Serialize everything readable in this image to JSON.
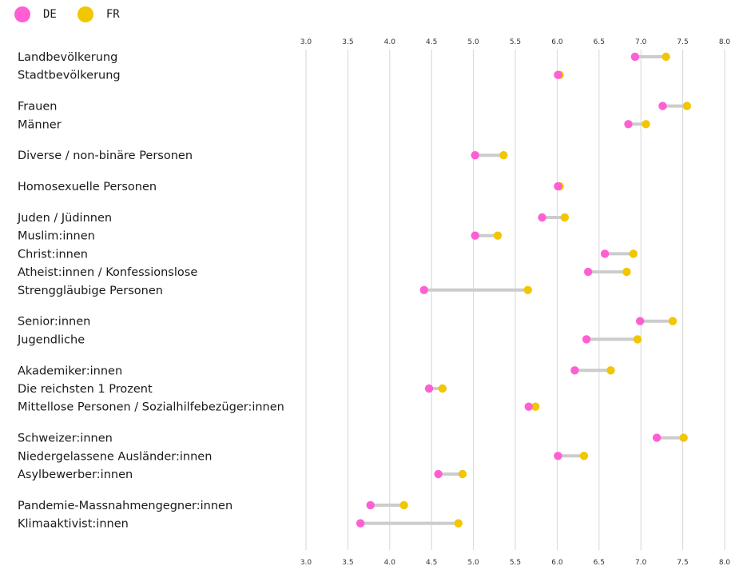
{
  "legend": [
    {
      "name": "DE",
      "color": "#ff5fd2"
    },
    {
      "name": "FR",
      "color": "#f2c600"
    }
  ],
  "chart_data": {
    "type": "dumbbell",
    "title": "",
    "xlabel": "",
    "ylabel": "",
    "xlim": [
      3.0,
      8.0
    ],
    "x_ticks": [
      "3.0",
      "3.5",
      "4.0",
      "4.5",
      "5.0",
      "5.5",
      "6.0",
      "6.5",
      "7.0",
      "7.5",
      "8.0"
    ],
    "tick_axes": "top-and-bottom",
    "grid": "vertical",
    "connector_color": "#cccccc",
    "series": [
      {
        "name": "DE",
        "color": "#ff5fd2"
      },
      {
        "name": "FR",
        "color": "#f2c600"
      }
    ],
    "categories": [
      {
        "label": "Landbevölkerung",
        "DE": 6.93,
        "FR": 7.3,
        "group": 0
      },
      {
        "label": "Stadtbevölkerung",
        "DE": 6.01,
        "FR": 6.03,
        "group": 0
      },
      {
        "label": "Frauen",
        "DE": 7.26,
        "FR": 7.55,
        "group": 1
      },
      {
        "label": "Männer",
        "DE": 6.85,
        "FR": 7.06,
        "group": 1
      },
      {
        "label": "Diverse / non-binäre Personen",
        "DE": 5.02,
        "FR": 5.36,
        "group": 2
      },
      {
        "label": "Homosexuelle Personen",
        "DE": 6.01,
        "FR": 6.03,
        "group": 3
      },
      {
        "label": "Juden / Jüdinnen",
        "DE": 5.82,
        "FR": 6.09,
        "group": 4
      },
      {
        "label": "Muslim:innen",
        "DE": 5.02,
        "FR": 5.29,
        "group": 4
      },
      {
        "label": "Christ:innen",
        "DE": 6.57,
        "FR": 6.91,
        "group": 4
      },
      {
        "label": "Atheist:innen / Konfessionslose",
        "DE": 6.37,
        "FR": 6.83,
        "group": 4
      },
      {
        "label": "Strenggläubige Personen",
        "DE": 4.41,
        "FR": 5.65,
        "group": 4
      },
      {
        "label": "Senior:innen",
        "DE": 6.99,
        "FR": 7.38,
        "group": 5
      },
      {
        "label": "Jugendliche",
        "DE": 6.35,
        "FR": 6.96,
        "group": 5
      },
      {
        "label": "Akademiker:innen",
        "DE": 6.21,
        "FR": 6.64,
        "group": 6
      },
      {
        "label": "Die reichsten 1 Prozent",
        "DE": 4.47,
        "FR": 4.63,
        "group": 6
      },
      {
        "label": "Mittellose Personen / Sozialhilfebezüger:innen",
        "DE": 5.66,
        "FR": 5.74,
        "group": 6
      },
      {
        "label": "Schweizer:innen",
        "DE": 7.19,
        "FR": 7.51,
        "group": 7
      },
      {
        "label": "Niedergelassene Ausländer:innen",
        "DE": 6.01,
        "FR": 6.32,
        "group": 7
      },
      {
        "label": "Asylbewerber:innen",
        "DE": 4.58,
        "FR": 4.87,
        "group": 7
      },
      {
        "label": "Pandemie-Massnahmengegner:innen",
        "DE": 3.77,
        "FR": 4.17,
        "group": 8
      },
      {
        "label": "Klimaaktivist:innen",
        "DE": 3.65,
        "FR": 4.82,
        "group": 8
      }
    ]
  }
}
